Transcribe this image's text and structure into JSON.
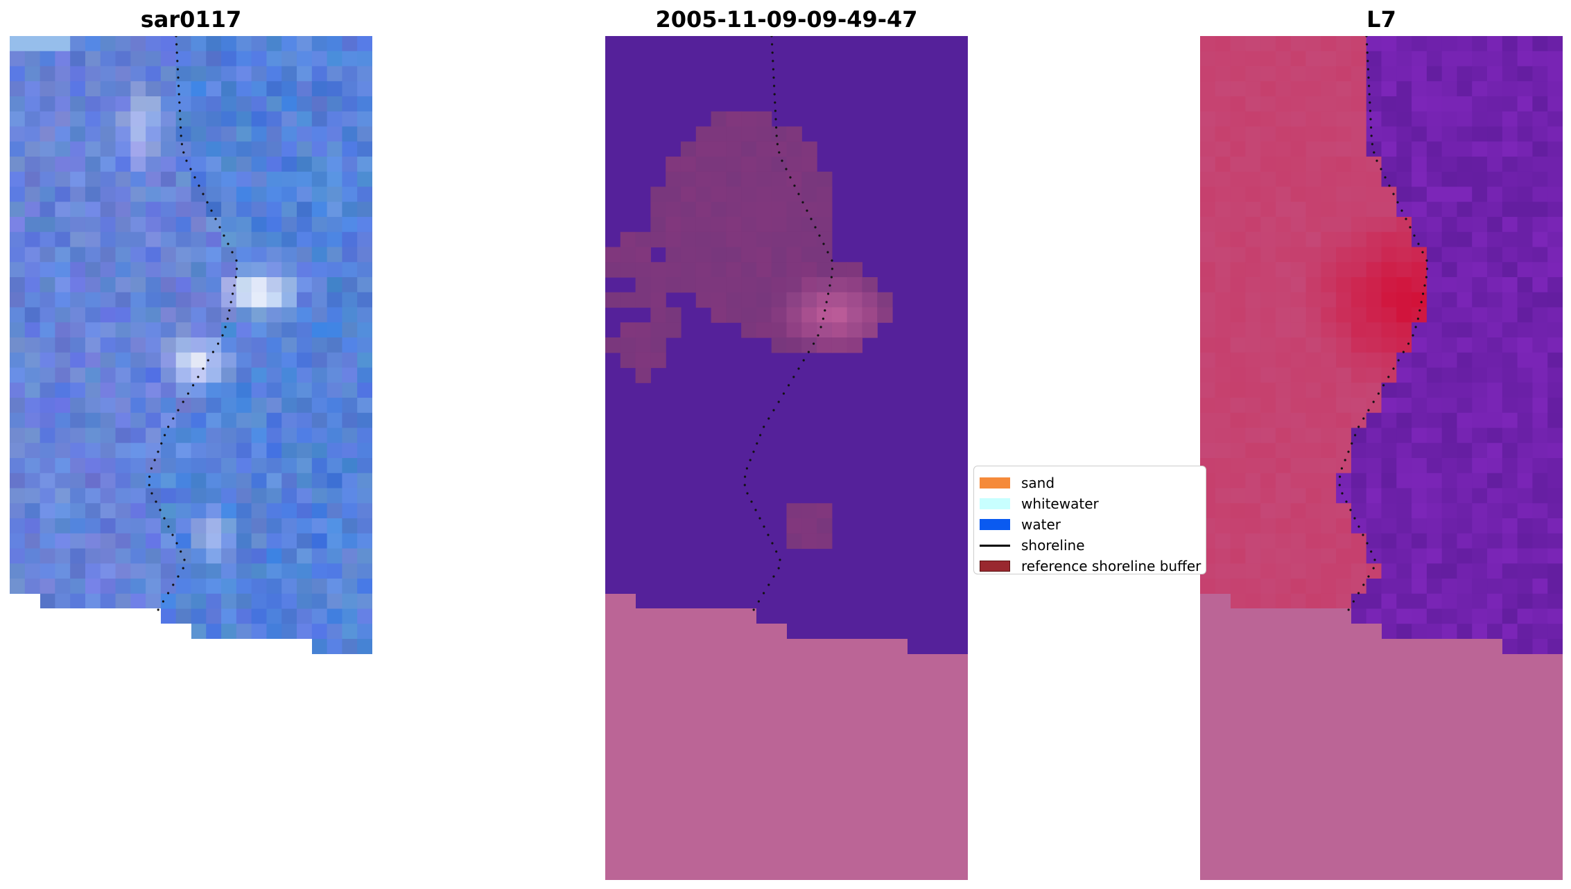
{
  "panels": [
    {
      "title": "sar0117",
      "kind": "rgb"
    },
    {
      "title": "2005-11-09-09-49-47",
      "kind": "classified"
    },
    {
      "title": "L7",
      "kind": "mndwi"
    }
  ],
  "legend": {
    "items": [
      {
        "label": "sand",
        "color": "#f58a3a",
        "type": "patch"
      },
      {
        "label": "whitewater",
        "color": "#c8ffff",
        "type": "patch"
      },
      {
        "label": "water",
        "color": "#0a5af0",
        "type": "patch"
      },
      {
        "label": "shoreline",
        "color": "#000000",
        "type": "line"
      },
      {
        "label": "reference shoreline buffer",
        "color": "#99282f",
        "type": "patch"
      }
    ]
  },
  "colors": {
    "background_purple": "#55219a",
    "nodata_pink": "#bb6596",
    "buffer_mauve": "#7a3a80",
    "rgb_base": "#3a78cc"
  }
}
